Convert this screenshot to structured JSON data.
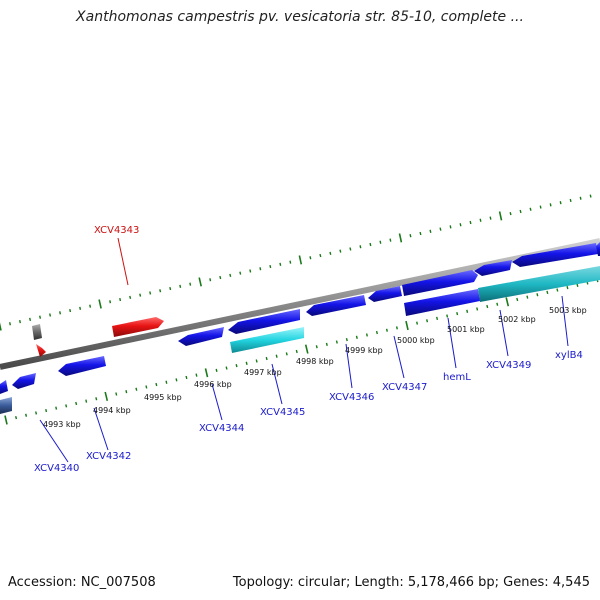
{
  "title": "Xanthomonas campestris pv. vesicatoria str. 85-10, complete ...",
  "accession_label": "Accession: NC_007508",
  "summary_label": "Topology: circular; Length: 5,178,466 bp; Genes: 4,545",
  "colors": {
    "backbone": "#8a8a8a",
    "tick": "#1a7a1a",
    "gene_forward": "#1414e8",
    "gene_reverse": "#1414e8",
    "gene_highlight": "#e81414",
    "gene_cyan": "#22d4e0",
    "gene_teal": "#1fb8c4",
    "gene_gray": "#6a6a6a",
    "label_blue": "#1a1acc",
    "label_red": "#cc1111"
  },
  "scale_labels": [
    {
      "text": "4993 kbp"
    },
    {
      "text": "4994 kbp"
    },
    {
      "text": "4995 kbp"
    },
    {
      "text": "4996 kbp"
    },
    {
      "text": "4997 kbp"
    },
    {
      "text": "4998 kbp"
    },
    {
      "text": "4999 kbp"
    },
    {
      "text": "5000 kbp"
    },
    {
      "text": "5001 kbp"
    },
    {
      "text": "5002 kbp"
    },
    {
      "text": "5003 kbp"
    }
  ],
  "gene_labels": [
    {
      "text": "XCV4340",
      "color": "label_blue"
    },
    {
      "text": "XCV4342",
      "color": "label_blue"
    },
    {
      "text": "XCV4343",
      "color": "label_red"
    },
    {
      "text": "XCV4344",
      "color": "label_blue"
    },
    {
      "text": "XCV4345",
      "color": "label_blue"
    },
    {
      "text": "XCV4346",
      "color": "label_blue"
    },
    {
      "text": "XCV4347",
      "color": "label_blue"
    },
    {
      "text": "hemL",
      "color": "label_blue"
    },
    {
      "text": "XCV4349",
      "color": "label_blue"
    },
    {
      "text": "xylB4",
      "color": "label_blue"
    }
  ]
}
